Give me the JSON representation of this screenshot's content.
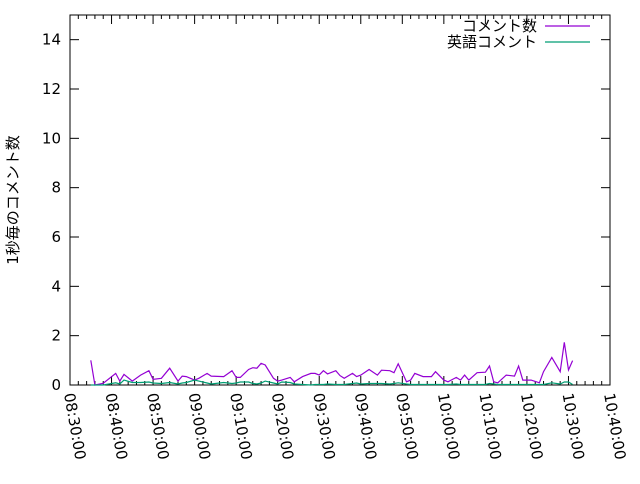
{
  "chart_data": {
    "type": "line",
    "title": "",
    "xlabel": "",
    "ylabel": "1秒毎のコメント数",
    "ylim": [
      0,
      15
    ],
    "yticks": [
      0,
      2,
      4,
      6,
      8,
      10,
      12,
      14
    ],
    "xlim": [
      "08:30:00",
      "10:40:00"
    ],
    "xticks": [
      "08:30:00",
      "08:40:00",
      "08:50:00",
      "09:00:00",
      "09:10:00",
      "09:20:00",
      "09:30:00",
      "09:40:00",
      "09:50:00",
      "10:00:00",
      "10:10:00",
      "10:20:00",
      "10:30:00",
      "10:40:00"
    ],
    "grid": false,
    "legend_position": "top-right",
    "x": [
      "08:35",
      "08:36",
      "08:38",
      "08:41",
      "08:42",
      "08:43",
      "08:45",
      "08:47",
      "08:49",
      "08:50",
      "08:52",
      "08:54",
      "08:56",
      "08:57",
      "08:58",
      "09:00",
      "09:01",
      "09:03",
      "09:04",
      "09:07",
      "09:09",
      "09:10",
      "09:11",
      "09:13",
      "09:14",
      "09:15",
      "09:16",
      "09:17",
      "09:19",
      "09:20",
      "09:21",
      "09:23",
      "09:24",
      "09:26",
      "09:28",
      "09:29",
      "09:30",
      "09:31",
      "09:32",
      "09:34",
      "09:35",
      "09:36",
      "09:38",
      "09:39",
      "09:40",
      "09:42",
      "09:44",
      "09:45",
      "09:47",
      "09:48",
      "09:49",
      "09:51",
      "09:52",
      "09:53",
      "09:55",
      "09:57",
      "09:58",
      "10:00",
      "10:01",
      "10:03",
      "10:04",
      "10:05",
      "10:06",
      "10:08",
      "10:10",
      "10:11",
      "10:12",
      "10:13",
      "10:15",
      "10:17",
      "10:18",
      "10:19",
      "10:21",
      "10:23",
      "10:24",
      "10:26",
      "10:28",
      "10:29",
      "10:30",
      "10:31"
    ],
    "series": [
      {
        "name": "コメント数",
        "color": "#9400d3",
        "values": [
          1.0,
          0,
          0.07,
          0.47,
          0.16,
          0.43,
          0.16,
          0.4,
          0.58,
          0.23,
          0.27,
          0.68,
          0.16,
          0.36,
          0.34,
          0.2,
          0.27,
          0.47,
          0.36,
          0.34,
          0.58,
          0.31,
          0.31,
          0.63,
          0.7,
          0.68,
          0.88,
          0.81,
          0.27,
          0.16,
          0.2,
          0.31,
          0.13,
          0.34,
          0.47,
          0.47,
          0.4,
          0.58,
          0.45,
          0.58,
          0.38,
          0.27,
          0.47,
          0.34,
          0.4,
          0.63,
          0.4,
          0.6,
          0.58,
          0.5,
          0.86,
          0.13,
          0.2,
          0.47,
          0.34,
          0.34,
          0.54,
          0.2,
          0.13,
          0.31,
          0.2,
          0.4,
          0.2,
          0.5,
          0.52,
          0.77,
          0.13,
          0.09,
          0.4,
          0.36,
          0.77,
          0.2,
          0.2,
          0.09,
          0.54,
          1.12,
          0.54,
          1.73,
          0.61,
          0.99
        ]
      },
      {
        "name": "英語コメント",
        "color": "#009e73",
        "values": [
          0,
          0,
          0,
          0.09,
          0.04,
          0.2,
          0.1,
          0.1,
          0.12,
          0.08,
          0.06,
          0.1,
          0.04,
          0.08,
          0.1,
          0.2,
          0.16,
          0.08,
          0.04,
          0.1,
          0.06,
          0.08,
          0.12,
          0.12,
          0.06,
          0.04,
          0.08,
          0.16,
          0.08,
          0.04,
          0.12,
          0.1,
          0.04,
          0.02,
          0,
          0.02,
          0.02,
          0.02,
          0.04,
          0.02,
          0.02,
          0.02,
          0.06,
          0.08,
          0.04,
          0.06,
          0.06,
          0.06,
          0.04,
          0.06,
          0.09,
          0.04,
          0.02,
          0.02,
          0.02,
          0.02,
          0.02,
          0.02,
          0.02,
          0.04,
          0.02,
          0.02,
          0.02,
          0.02,
          0.02,
          0.06,
          0.04,
          0.02,
          0.02,
          0.02,
          0.02,
          0.02,
          0.02,
          0.02,
          0.02,
          0.09,
          0.04,
          0.12,
          0.12,
          0.02
        ]
      }
    ]
  }
}
